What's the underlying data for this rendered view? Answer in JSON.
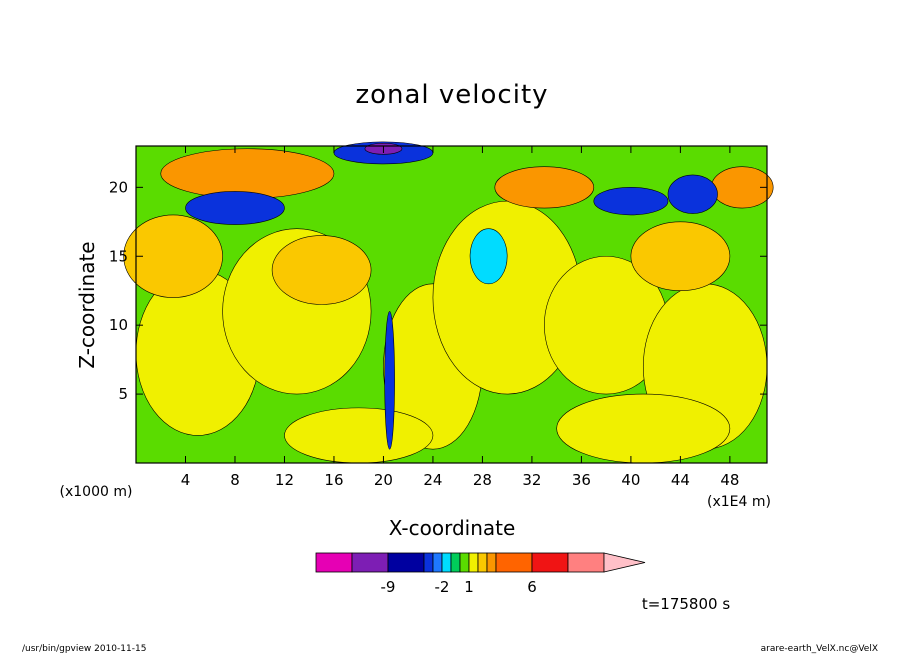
{
  "chart_data": {
    "type": "heatmap",
    "title": "zonal velocity",
    "xlabel": "X-coordinate",
    "ylabel": "Z-coordinate",
    "x_units_label": "(x1E4 m)",
    "y_units_label": "(x1000 m)",
    "xlim": [
      0,
      51
    ],
    "ylim": [
      0,
      23
    ],
    "x_ticks": [
      4,
      8,
      12,
      16,
      20,
      24,
      28,
      32,
      36,
      40,
      44,
      48
    ],
    "y_ticks": [
      5,
      10,
      15,
      20
    ],
    "time_label": "t=175800 s",
    "colorbar": {
      "colors": [
        "#e600b4",
        "#7d1eb4",
        "#0000a0",
        "#0a32dc",
        "#1e78ff",
        "#00dcff",
        "#00cd5a",
        "#5adc00",
        "#f0f000",
        "#fac800",
        "#fa9600",
        "#ff6400",
        "#f01414",
        "#ff8080",
        "#ffc0c8"
      ],
      "tick_labels": [
        "-9",
        "-2",
        "1",
        "6"
      ]
    },
    "palette": {
      "neg_large": "#7d1eb4",
      "neg_mid": "#0a32dc",
      "neg_small": "#00dcff",
      "near_zero": "#5adc00",
      "pos_small": "#f0f000",
      "pos_mid": "#fac800",
      "pos_large": "#fa9600"
    }
  },
  "footer": {
    "left": "/usr/bin/gpview   2010-11-15",
    "right": "arare-earth_VelX.nc@VelX"
  }
}
